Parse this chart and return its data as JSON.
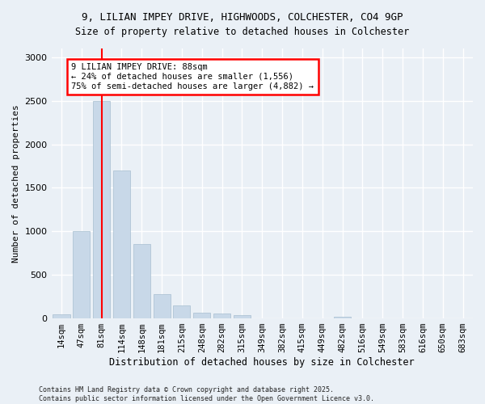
{
  "title_line1": "9, LILIAN IMPEY DRIVE, HIGHWOODS, COLCHESTER, CO4 9GP",
  "title_line2": "Size of property relative to detached houses in Colchester",
  "xlabel": "Distribution of detached houses by size in Colchester",
  "ylabel": "Number of detached properties",
  "categories": [
    "14sqm",
    "47sqm",
    "81sqm",
    "114sqm",
    "148sqm",
    "181sqm",
    "215sqm",
    "248sqm",
    "282sqm",
    "315sqm",
    "349sqm",
    "382sqm",
    "415sqm",
    "449sqm",
    "482sqm",
    "516sqm",
    "549sqm",
    "583sqm",
    "616sqm",
    "650sqm",
    "683sqm"
  ],
  "values": [
    50,
    1000,
    2500,
    1700,
    850,
    280,
    150,
    70,
    60,
    40,
    5,
    5,
    2,
    0,
    20,
    0,
    0,
    0,
    0,
    0,
    0
  ],
  "bar_color": "#c8d8e8",
  "bar_edge_color": "#a8bfd0",
  "red_line_index": 2,
  "annotation_text": "9 LILIAN IMPEY DRIVE: 88sqm\n← 24% of detached houses are smaller (1,556)\n75% of semi-detached houses are larger (4,882) →",
  "annotation_box_color": "white",
  "annotation_box_edge_color": "red",
  "ylim": [
    0,
    3100
  ],
  "yticks": [
    0,
    500,
    1000,
    1500,
    2000,
    2500,
    3000
  ],
  "footer": "Contains HM Land Registry data © Crown copyright and database right 2025.\nContains public sector information licensed under the Open Government Licence v3.0.",
  "background_color": "#eaf0f6"
}
